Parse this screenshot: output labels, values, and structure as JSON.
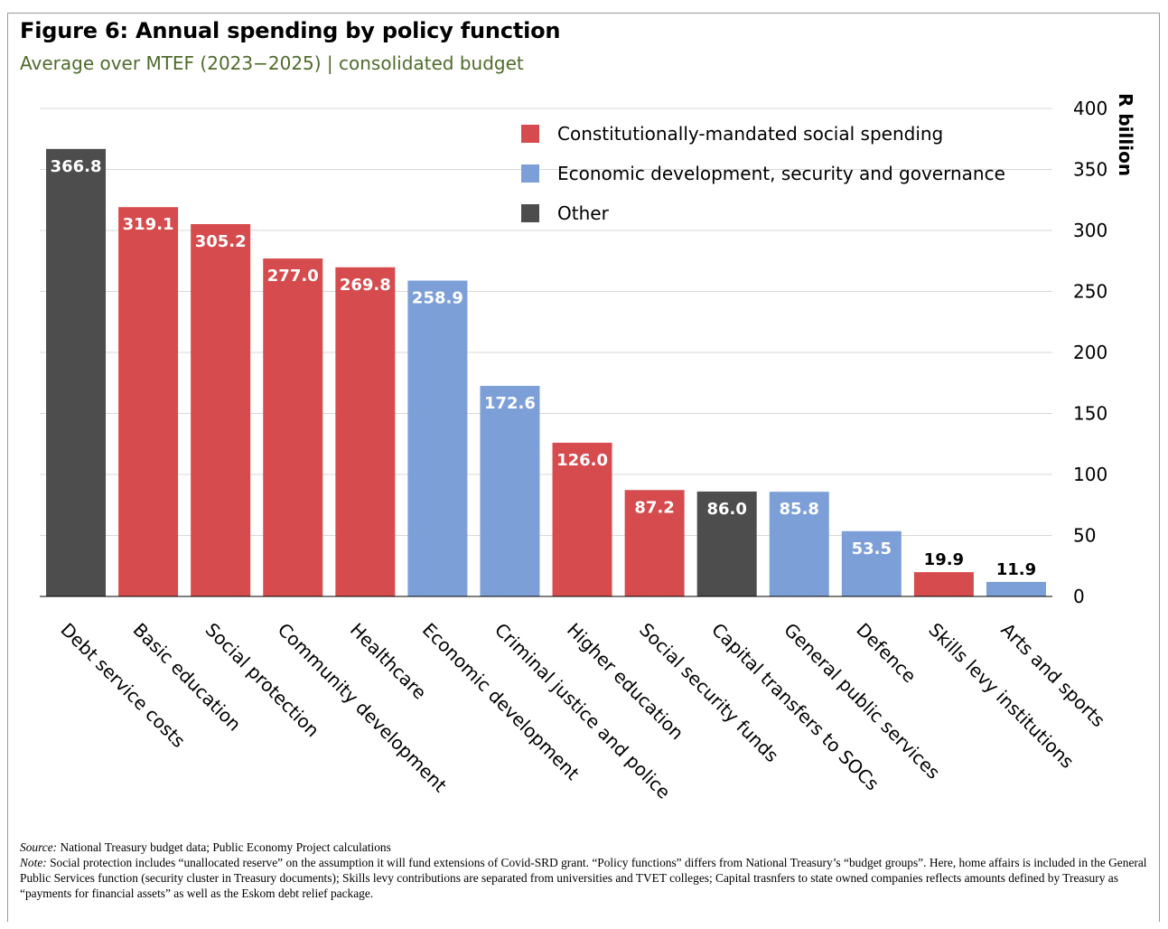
{
  "title": "Figure 6: Annual spending by policy function",
  "subtitle": "Average over MTEF (2023−2025) | consolidated budget",
  "colors": {
    "social": "#d64b4d",
    "economic": "#7d9fd7",
    "other": "#4d4d4d",
    "grid": "#d9d9d9",
    "axis": "#000000"
  },
  "chart_data": {
    "type": "bar",
    "title": "Figure 6: Annual spending by policy function",
    "subtitle": "Average over MTEF (2023−2025) | consolidated budget",
    "ylabel": "R billion",
    "ylim": [
      0,
      400
    ],
    "yticks": [
      0,
      50,
      100,
      150,
      200,
      250,
      300,
      350,
      400
    ],
    "grid": true,
    "y_axis_side": "right",
    "legend_position": "top-right",
    "legend": [
      {
        "key": "social",
        "label": "Constitutionally-mandated social spending"
      },
      {
        "key": "economic",
        "label": "Economic development, security and governance"
      },
      {
        "key": "other",
        "label": "Other"
      }
    ],
    "categories": [
      "Debt service costs",
      "Basic education",
      "Social protection",
      "Community development",
      "Healthcare",
      "Economic development",
      "Criminal justice and police",
      "Higher education",
      "Social security funds",
      "Capital transfers to SOCs",
      "General public services",
      "Defence",
      "Skills levy institutions",
      "Arts and sports"
    ],
    "values": [
      366.8,
      319.1,
      305.2,
      277.0,
      269.8,
      258.9,
      172.6,
      126.0,
      87.2,
      86.0,
      85.8,
      53.5,
      19.9,
      11.9
    ],
    "value_labels": [
      "366.8",
      "319.1",
      "305.2",
      "277.0",
      "269.8",
      "258.9",
      "172.6",
      "126.0",
      "87.2",
      "86.0",
      "85.8",
      "53.5",
      "19.9",
      "11.9"
    ],
    "groups": [
      "other",
      "social",
      "social",
      "social",
      "social",
      "economic",
      "economic",
      "social",
      "social",
      "other",
      "economic",
      "economic",
      "social",
      "economic"
    ]
  },
  "footer": {
    "source_label": "Source:",
    "source_text": " National Treasury budget data; Public Economy Project calculations",
    "note_label": "Note:",
    "note_text": " Social protection includes “unallocated reserve” on the assumption it will fund extensions of Covid-SRD grant. “Policy functions” differs from National Treasury’s “budget groups”. Here, home affairs is included in the General Public Services function (security cluster in Treasury documents); Skills levy contributions are separated from universities and TVET colleges; Capital trasnfers to state owned companies reflects amounts defined by Treasury as “payments for financial assets” as well as the Eskom debt relief package."
  }
}
